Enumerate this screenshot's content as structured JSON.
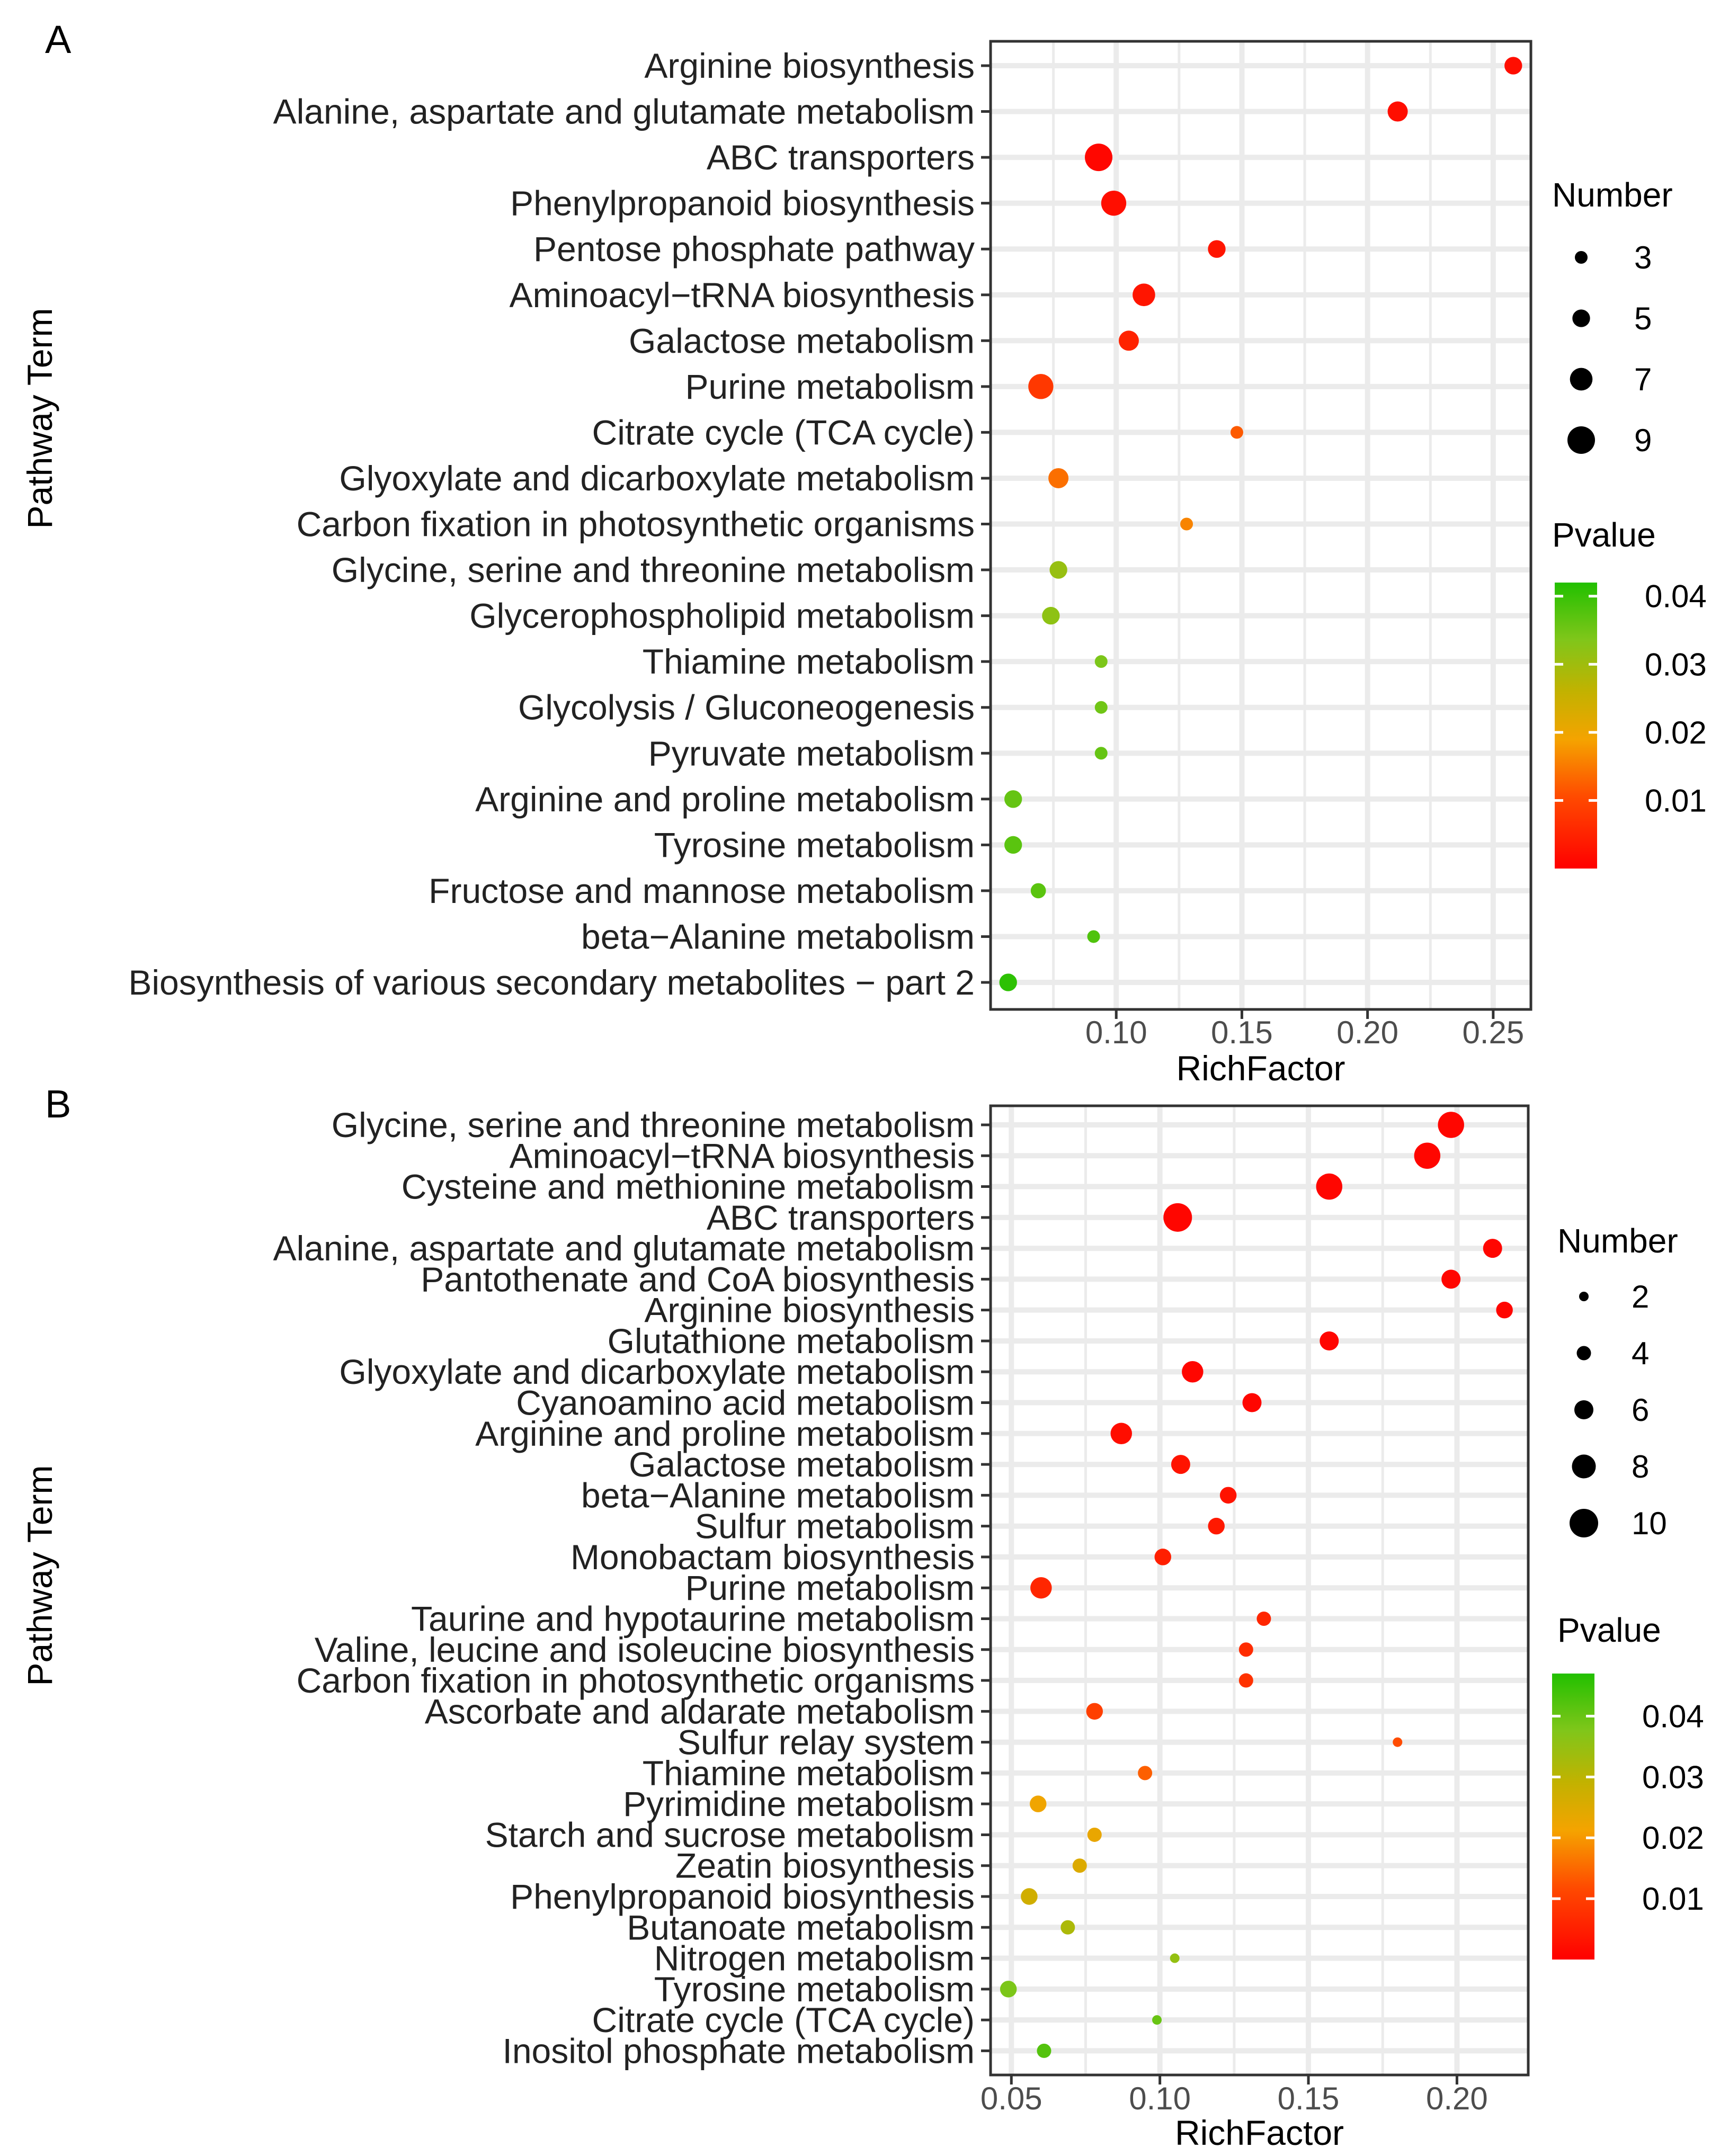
{
  "chart_data": [
    {
      "panel": "A",
      "type": "scatter",
      "subtype": "bubble",
      "xlabel": "RichFactor",
      "ylabel": "Pathway Term",
      "xlim": [
        0.05,
        0.265
      ],
      "xticks": [
        0.1,
        0.15,
        0.2,
        0.25
      ],
      "xtick_labels": [
        "0.10",
        "0.15",
        "0.20",
        "0.25"
      ],
      "size_legend": {
        "title": "Number",
        "values": [
          3,
          5,
          7,
          9
        ],
        "labels": [
          "3",
          "5",
          "7",
          "9"
        ]
      },
      "color_legend": {
        "title": "Pvalue",
        "range": [
          0,
          0.042
        ],
        "ticks": [
          0.01,
          0.02,
          0.03,
          0.04
        ],
        "labels": [
          "0.01",
          "0.02",
          "0.03",
          "0.04"
        ],
        "low_color": "#FF0000",
        "mid_color": "#F5A300",
        "high_color": "#22C000"
      },
      "points": [
        {
          "pathway": "Arginine biosynthesis",
          "richfactor": 0.258,
          "number": 5,
          "pvalue": 0.002
        },
        {
          "pathway": "Alanine, aspartate and glutamate metabolism",
          "richfactor": 0.212,
          "number": 6,
          "pvalue": 0.002
        },
        {
          "pathway": "ABC transporters",
          "richfactor": 0.093,
          "number": 9,
          "pvalue": 0.001
        },
        {
          "pathway": "Phenylpropanoid biosynthesis",
          "richfactor": 0.099,
          "number": 8,
          "pvalue": 0.002
        },
        {
          "pathway": "Pentose phosphate pathway",
          "richfactor": 0.14,
          "number": 5,
          "pvalue": 0.003
        },
        {
          "pathway": "Aminoacyl-tRNA biosynthesis",
          "richfactor": 0.111,
          "number": 7,
          "pvalue": 0.003
        },
        {
          "pathway": "Galactose metabolism",
          "richfactor": 0.105,
          "number": 6,
          "pvalue": 0.005
        },
        {
          "pathway": "Purine metabolism",
          "richfactor": 0.07,
          "number": 8,
          "pvalue": 0.008
        },
        {
          "pathway": "Citrate cycle (TCA cycle)",
          "richfactor": 0.148,
          "number": 3,
          "pvalue": 0.012
        },
        {
          "pathway": "Glyoxylate and dicarboxylate metabolism",
          "richfactor": 0.077,
          "number": 6,
          "pvalue": 0.014
        },
        {
          "pathway": "Carbon fixation in photosynthetic organisms",
          "richfactor": 0.128,
          "number": 3,
          "pvalue": 0.016
        },
        {
          "pathway": "Glycine, serine and threonine metabolism",
          "richfactor": 0.077,
          "number": 5,
          "pvalue": 0.031
        },
        {
          "pathway": "Glycerophospholipid metabolism",
          "richfactor": 0.074,
          "number": 5,
          "pvalue": 0.032
        },
        {
          "pathway": "Thiamine metabolism",
          "richfactor": 0.094,
          "number": 3,
          "pvalue": 0.034
        },
        {
          "pathway": "Glycolysis / Gluconeogenesis",
          "richfactor": 0.094,
          "number": 3,
          "pvalue": 0.035
        },
        {
          "pathway": "Pyruvate metabolism",
          "richfactor": 0.094,
          "number": 3,
          "pvalue": 0.036
        },
        {
          "pathway": "Arginine and proline metabolism",
          "richfactor": 0.059,
          "number": 5,
          "pvalue": 0.036
        },
        {
          "pathway": "Tyrosine metabolism",
          "richfactor": 0.059,
          "number": 5,
          "pvalue": 0.037
        },
        {
          "pathway": "Fructose and mannose metabolism",
          "richfactor": 0.069,
          "number": 4,
          "pvalue": 0.037
        },
        {
          "pathway": "beta-Alanine metabolism",
          "richfactor": 0.091,
          "number": 3,
          "pvalue": 0.038
        },
        {
          "pathway": "Biosynthesis of various secondary metabolites - part 2",
          "richfactor": 0.057,
          "number": 5,
          "pvalue": 0.041
        }
      ]
    },
    {
      "panel": "B",
      "type": "scatter",
      "subtype": "bubble",
      "xlabel": "RichFactor",
      "ylabel": "Pathway Term",
      "xlim": [
        0.043,
        0.224
      ],
      "xticks": [
        0.05,
        0.1,
        0.15,
        0.2
      ],
      "xtick_labels": [
        "0.05",
        "0.10",
        "0.15",
        "0.20"
      ],
      "size_legend": {
        "title": "Number",
        "values": [
          2,
          4,
          6,
          8,
          10
        ],
        "labels": [
          "2",
          "4",
          "6",
          "8",
          "10"
        ]
      },
      "color_legend": {
        "title": "Pvalue",
        "range": [
          0,
          0.047
        ],
        "ticks": [
          0.01,
          0.02,
          0.03,
          0.04
        ],
        "labels": [
          "0.01",
          "0.02",
          "0.03",
          "0.04"
        ],
        "low_color": "#FF0000",
        "mid_color": "#F5A300",
        "high_color": "#22C000"
      },
      "points": [
        {
          "pathway": "Glycine, serine and threonine metabolism",
          "richfactor": 0.198,
          "number": 9,
          "pvalue": 0.001
        },
        {
          "pathway": "Aminoacyl-tRNA biosynthesis",
          "richfactor": 0.19,
          "number": 9,
          "pvalue": 0.001
        },
        {
          "pathway": "Cysteine and methionine metabolism",
          "richfactor": 0.157,
          "number": 9,
          "pvalue": 0.001
        },
        {
          "pathway": "ABC transporters",
          "richfactor": 0.106,
          "number": 10,
          "pvalue": 0.001
        },
        {
          "pathway": "Alanine, aspartate and glutamate metabolism",
          "richfactor": 0.212,
          "number": 6,
          "pvalue": 0.001
        },
        {
          "pathway": "Pantothenate and CoA biosynthesis",
          "richfactor": 0.198,
          "number": 6,
          "pvalue": 0.001
        },
        {
          "pathway": "Arginine biosynthesis",
          "richfactor": 0.216,
          "number": 5,
          "pvalue": 0.001
        },
        {
          "pathway": "Glutathione metabolism",
          "richfactor": 0.157,
          "number": 6,
          "pvalue": 0.001
        },
        {
          "pathway": "Glyoxylate and dicarboxylate metabolism",
          "richfactor": 0.111,
          "number": 7,
          "pvalue": 0.001
        },
        {
          "pathway": "Cyanoamino acid metabolism",
          "richfactor": 0.131,
          "number": 6,
          "pvalue": 0.001
        },
        {
          "pathway": "Arginine and proline metabolism",
          "richfactor": 0.087,
          "number": 7,
          "pvalue": 0.002
        },
        {
          "pathway": "Galactose metabolism",
          "richfactor": 0.107,
          "number": 6,
          "pvalue": 0.003
        },
        {
          "pathway": "beta-Alanine metabolism",
          "richfactor": 0.123,
          "number": 5,
          "pvalue": 0.003
        },
        {
          "pathway": "Sulfur metabolism",
          "richfactor": 0.119,
          "number": 5,
          "pvalue": 0.004
        },
        {
          "pathway": "Monobactam biosynthesis",
          "richfactor": 0.101,
          "number": 5,
          "pvalue": 0.005
        },
        {
          "pathway": "Purine metabolism",
          "richfactor": 0.06,
          "number": 7,
          "pvalue": 0.006
        },
        {
          "pathway": "Taurine and hypotaurine metabolism",
          "richfactor": 0.135,
          "number": 4,
          "pvalue": 0.006
        },
        {
          "pathway": "Valine, leucine and isoleucine biosynthesis",
          "richfactor": 0.129,
          "number": 4,
          "pvalue": 0.007
        },
        {
          "pathway": "Carbon fixation in photosynthetic organisms",
          "richfactor": 0.129,
          "number": 4,
          "pvalue": 0.008
        },
        {
          "pathway": "Ascorbate and aldarate metabolism",
          "richfactor": 0.078,
          "number": 5,
          "pvalue": 0.01
        },
        {
          "pathway": "Sulfur relay system",
          "richfactor": 0.18,
          "number": 2,
          "pvalue": 0.012
        },
        {
          "pathway": "Thiamine metabolism",
          "richfactor": 0.095,
          "number": 4,
          "pvalue": 0.014
        },
        {
          "pathway": "Pyrimidine metabolism",
          "richfactor": 0.059,
          "number": 5,
          "pvalue": 0.022
        },
        {
          "pathway": "Starch and sucrose metabolism",
          "richfactor": 0.078,
          "number": 4,
          "pvalue": 0.023
        },
        {
          "pathway": "Zeatin biosynthesis",
          "richfactor": 0.073,
          "number": 4,
          "pvalue": 0.025
        },
        {
          "pathway": "Phenylpropanoid biosynthesis",
          "richfactor": 0.056,
          "number": 5,
          "pvalue": 0.027
        },
        {
          "pathway": "Butanoate metabolism",
          "richfactor": 0.069,
          "number": 4,
          "pvalue": 0.032
        },
        {
          "pathway": "Nitrogen metabolism",
          "richfactor": 0.105,
          "number": 2,
          "pvalue": 0.035
        },
        {
          "pathway": "Tyrosine metabolism",
          "richfactor": 0.049,
          "number": 5,
          "pvalue": 0.038
        },
        {
          "pathway": "Citrate cycle (TCA cycle)",
          "richfactor": 0.099,
          "number": 2,
          "pvalue": 0.04
        },
        {
          "pathway": "Inositol phosphate metabolism",
          "richfactor": 0.061,
          "number": 4,
          "pvalue": 0.042
        }
      ]
    }
  ]
}
